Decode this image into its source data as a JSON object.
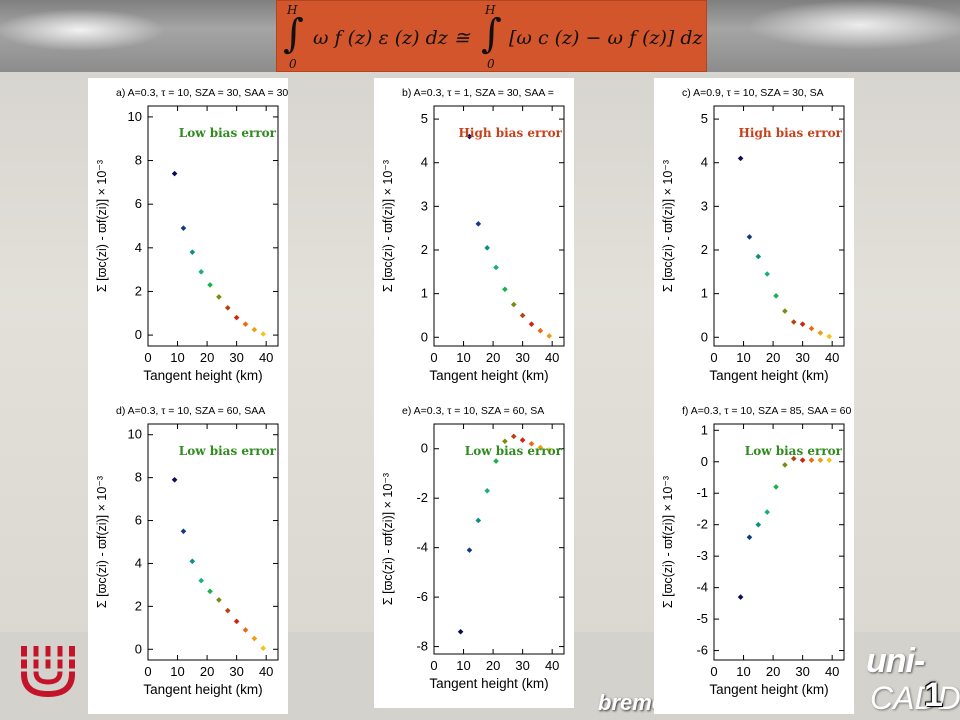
{
  "colors": {
    "note_green": "#2e8b1e",
    "note_red": "#c8401a",
    "formula_bg": "#d2552b",
    "point_palette": [
      "#0b0b58",
      "#113a86",
      "#0d8f86",
      "#17b07a",
      "#19b24a",
      "#7c8a10",
      "#b5420f",
      "#d4200f",
      "#ee6a10",
      "#f29a12",
      "#f5c41a"
    ]
  },
  "formula": {
    "upper_limit": "H",
    "lower_limit": "0",
    "integral_symbol": "∫",
    "left_expr": "ω f (z) ε (z) dz  ≅",
    "right_expr": "[ω c (z) − ω f (z)] dz"
  },
  "footer": {
    "uni_text": "uni-",
    "uni_text2": "CADD",
    "bremen_text": "bremenue",
    "page_number": "1"
  },
  "chart_data": [
    {
      "type": "scatter",
      "title": "a) A=0.3, τ = 10, SZA = 30, SAA = 30",
      "xlabel": "Tangent height (km)",
      "ylabel": "Σ [ϖc(zi) - ϖf(zi)] × 10⁻³",
      "xlim": [
        0,
        44
      ],
      "ylim": [
        -0.5,
        10.5
      ],
      "xticks": [
        0,
        10,
        20,
        30,
        40
      ],
      "yticks": [
        0,
        2,
        4,
        6,
        8,
        10
      ],
      "annotation": {
        "text": "Low bias error",
        "color": "green"
      },
      "points": [
        [
          9,
          7.4
        ],
        [
          12,
          4.9
        ],
        [
          15,
          3.8
        ],
        [
          18,
          2.9
        ],
        [
          21,
          2.3
        ],
        [
          24,
          1.75
        ],
        [
          27,
          1.25
        ],
        [
          30,
          0.8
        ],
        [
          33,
          0.5
        ],
        [
          36,
          0.25
        ],
        [
          39,
          0.05
        ]
      ]
    },
    {
      "type": "scatter",
      "title": "b) A=0.3, τ = 1, SZA = 30, SAA =",
      "xlabel": "Tangent height (km)",
      "ylabel": "Σ [ϖc(zi) - ϖf(zi)] × 10⁻³",
      "xlim": [
        0,
        44
      ],
      "ylim": [
        -0.2,
        5.3
      ],
      "xticks": [
        0,
        10,
        20,
        30,
        40
      ],
      "yticks": [
        0,
        1,
        2,
        3,
        4,
        5
      ],
      "annotation": {
        "text": "High bias error",
        "color": "red"
      },
      "points": [
        [
          12,
          4.6
        ],
        [
          15,
          2.6
        ],
        [
          18,
          2.05
        ],
        [
          21,
          1.6
        ],
        [
          24,
          1.1
        ],
        [
          27,
          0.75
        ],
        [
          30,
          0.5
        ],
        [
          33,
          0.3
        ],
        [
          36,
          0.15
        ],
        [
          39,
          0.03
        ]
      ]
    },
    {
      "type": "scatter",
      "title": "c) A=0.9, τ = 10, SZA = 30, SA",
      "xlabel": "Tangent height (km)",
      "ylabel": "Σ [ϖc(zi) - ϖf(zi)] × 10⁻³",
      "xlim": [
        0,
        44
      ],
      "ylim": [
        -0.2,
        5.3
      ],
      "xticks": [
        0,
        10,
        20,
        30,
        40
      ],
      "yticks": [
        0,
        1,
        2,
        3,
        4,
        5
      ],
      "annotation": {
        "text": "High bias error",
        "color": "red"
      },
      "points": [
        [
          9,
          4.1
        ],
        [
          12,
          2.3
        ],
        [
          15,
          1.85
        ],
        [
          18,
          1.45
        ],
        [
          21,
          0.95
        ],
        [
          24,
          0.6
        ],
        [
          27,
          0.35
        ],
        [
          30,
          0.3
        ],
        [
          33,
          0.2
        ],
        [
          36,
          0.1
        ],
        [
          39,
          0.02
        ]
      ]
    },
    {
      "type": "scatter",
      "title": "d) A=0.3, τ = 10, SZA = 60, SAA",
      "xlabel": "Tangent height (km)",
      "ylabel": "Σ [ϖc(zi) - ϖf(zi)] × 10⁻³",
      "xlim": [
        0,
        44
      ],
      "ylim": [
        -0.5,
        10.5
      ],
      "xticks": [
        0,
        10,
        20,
        30,
        40
      ],
      "yticks": [
        0,
        2,
        4,
        6,
        8,
        10
      ],
      "annotation": {
        "text": "Low bias error",
        "color": "green"
      },
      "points": [
        [
          9,
          7.9
        ],
        [
          12,
          5.5
        ],
        [
          15,
          4.1
        ],
        [
          18,
          3.2
        ],
        [
          21,
          2.7
        ],
        [
          24,
          2.3
        ],
        [
          27,
          1.8
        ],
        [
          30,
          1.3
        ],
        [
          33,
          0.9
        ],
        [
          36,
          0.5
        ],
        [
          39,
          0.05
        ]
      ]
    },
    {
      "type": "scatter",
      "title": "e) A=0.3, τ = 10, SZA = 60, SA",
      "xlabel": "Tangent height (km)",
      "ylabel": "Σ [ϖc(zi) - ϖf(zi)] × 10⁻³",
      "xlim": [
        0,
        44
      ],
      "ylim": [
        -8.3,
        1.0
      ],
      "xticks": [
        0,
        10,
        20,
        30,
        40
      ],
      "yticks": [
        -8,
        -6,
        -4,
        -2,
        0
      ],
      "annotation": {
        "text": "Low bias error",
        "color": "green"
      },
      "points": [
        [
          9,
          -7.4
        ],
        [
          12,
          -4.1
        ],
        [
          15,
          -2.9
        ],
        [
          18,
          -1.7
        ],
        [
          21,
          -0.5
        ],
        [
          24,
          0.3
        ],
        [
          27,
          0.5
        ],
        [
          30,
          0.35
        ],
        [
          33,
          0.2
        ],
        [
          36,
          0.05
        ],
        [
          39,
          -0.05
        ]
      ]
    },
    {
      "type": "scatter",
      "title": "f) A=0.3, τ = 10, SZA = 85, SAA = 60",
      "xlabel": "Tangent height (km)",
      "ylabel": "Σ [ϖc(zi) - ϖf(zi)] × 10⁻³",
      "xlim": [
        0,
        44
      ],
      "ylim": [
        -6.3,
        1.2
      ],
      "xticks": [
        0,
        10,
        20,
        30,
        40
      ],
      "yticks": [
        -6,
        -5,
        -4,
        -3,
        -2,
        -1,
        0,
        1
      ],
      "annotation": {
        "text": "Low bias error",
        "color": "green"
      },
      "points": [
        [
          9,
          -4.3
        ],
        [
          12,
          -2.4
        ],
        [
          15,
          -2.0
        ],
        [
          18,
          -1.6
        ],
        [
          21,
          -0.8
        ],
        [
          24,
          -0.1
        ],
        [
          27,
          0.1
        ],
        [
          30,
          0.05
        ],
        [
          33,
          0.05
        ],
        [
          36,
          0.05
        ],
        [
          39,
          0.05
        ]
      ]
    }
  ]
}
